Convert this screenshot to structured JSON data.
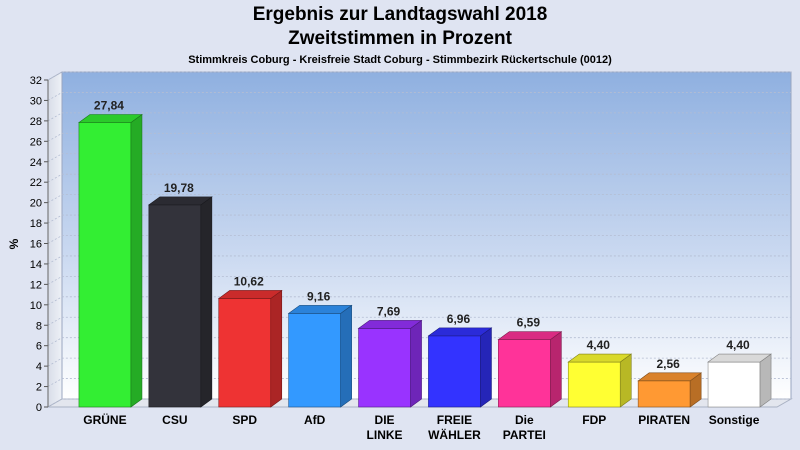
{
  "header": {
    "title": "Ergebnis zur Landtagswahl 2018",
    "subtitle": "Zweitstimmen in Prozent",
    "caption": "Stimmkreis Coburg - Kreisfreie Stadt Coburg - Stimmbezirk Rückertschule (0012)"
  },
  "chart_data": {
    "type": "bar",
    "title": "Ergebnis zur Landtagswahl 2018",
    "subtitle": "Zweitstimmen in Prozent",
    "xlabel": "",
    "ylabel": "%",
    "ylim": [
      0,
      32
    ],
    "yticks": [
      0,
      2,
      4,
      6,
      8,
      10,
      12,
      14,
      16,
      18,
      20,
      22,
      24,
      26,
      28,
      30,
      32
    ],
    "grid": true,
    "categories": [
      "GRÜNE",
      "CSU",
      "SPD",
      "AfD",
      "DIE LINKE",
      "FREIE WÄHLER",
      "Die PARTEI",
      "FDP",
      "PIRATEN",
      "Sonstige"
    ],
    "category_lines": [
      [
        "GRÜNE"
      ],
      [
        "CSU"
      ],
      [
        "SPD"
      ],
      [
        "AfD"
      ],
      [
        "DIE",
        "LINKE"
      ],
      [
        "FREIE",
        "WÄHLER"
      ],
      [
        "Die",
        "PARTEI"
      ],
      [
        "FDP"
      ],
      [
        "PIRATEN"
      ],
      [
        "Sonstige"
      ]
    ],
    "values": [
      27.84,
      19.78,
      10.62,
      9.16,
      7.69,
      6.96,
      6.59,
      4.4,
      2.56,
      4.4
    ],
    "value_labels": [
      "27,84",
      "19,78",
      "10,62",
      "9,16",
      "7,69",
      "6,96",
      "6,59",
      "4,40",
      "2,56",
      "4,40"
    ],
    "colors": [
      "#33ee33",
      "#33333b",
      "#ee3333",
      "#3399ff",
      "#9933ff",
      "#3333ff",
      "#ff3399",
      "#ffff33",
      "#ff9933",
      "#ffffff"
    ]
  }
}
